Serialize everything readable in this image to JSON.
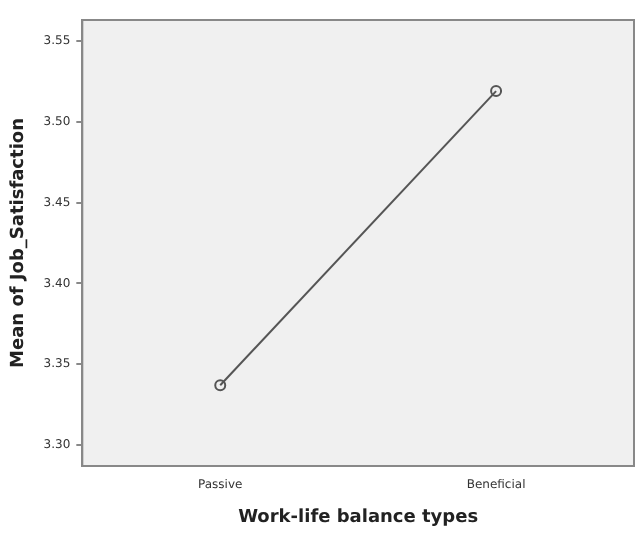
{
  "chart_data": {
    "type": "line",
    "xlabel": "Work-life balance types",
    "ylabel": "Mean of Job_Satisfaction",
    "categories": [
      "Passive",
      "Beneficial"
    ],
    "series": [
      {
        "color": "#555555",
        "values": [
          3.337,
          3.519
        ]
      }
    ],
    "ylim": [
      3.287,
      3.563
    ],
    "yticks": [
      {
        "value": 3.3,
        "label": "3.30"
      },
      3.35,
      {
        "value": 3.4,
        "label": "3.40"
      },
      3.45,
      {
        "value": 3.5,
        "label": "3.50"
      },
      3.55
    ],
    "grid": false,
    "legend": false,
    "marker": "circle",
    "line_style": "solid"
  }
}
